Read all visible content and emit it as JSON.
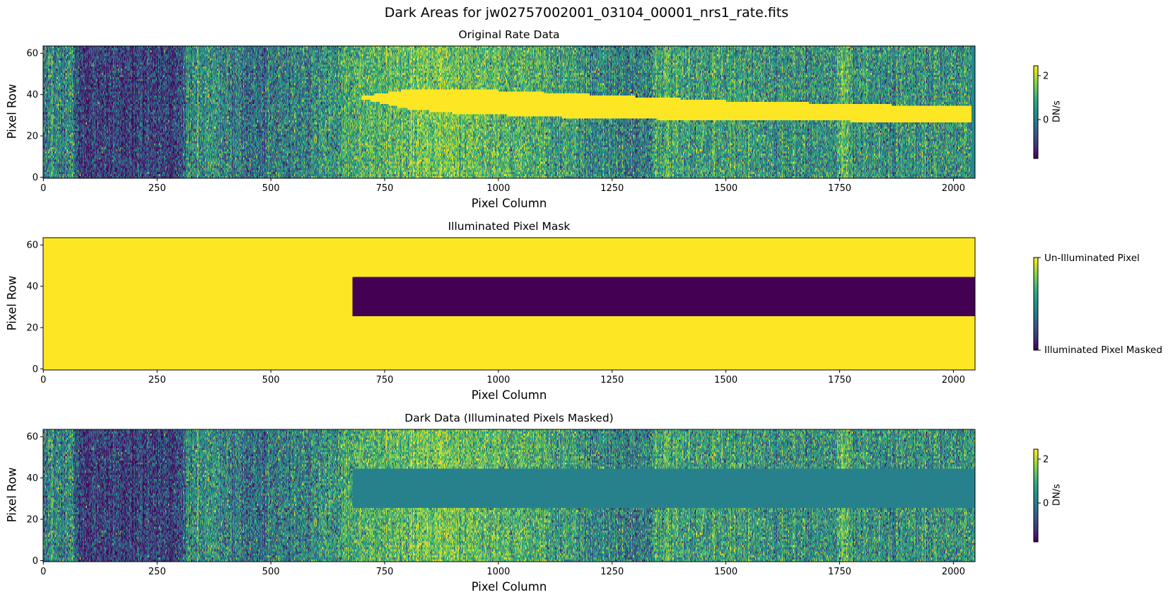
{
  "figure": {
    "suptitle": "Dark Areas for jw02757002001_03104_00001_nrs1_rate.fits"
  },
  "chart_data": [
    {
      "type": "heatmap",
      "title": "Original Rate Data",
      "xlabel": "Pixel Column",
      "ylabel": "Pixel Row",
      "xlim": [
        -0.5,
        2047.5
      ],
      "ylim": [
        -0.5,
        63.5
      ],
      "xticks": [
        0,
        250,
        500,
        750,
        1000,
        1250,
        1500,
        1750,
        2000
      ],
      "yticks": [
        0,
        20,
        40,
        60
      ],
      "colormap": "viridis",
      "colorbar": {
        "label": "DN/s",
        "range": [
          -1.77,
          2.45
        ],
        "ticks": [
          0,
          2
        ]
      },
      "features": {
        "dark_columns": [
          70,
          310
        ],
        "spectral_trace_start_column": 700,
        "trace_rows_at_end": [
          26,
          34
        ]
      }
    },
    {
      "type": "heatmap",
      "title": "Illuminated Pixel Mask",
      "xlabel": "Pixel Column",
      "ylabel": "Pixel Row",
      "xlim": [
        -0.5,
        2047.5
      ],
      "ylim": [
        -0.5,
        63.5
      ],
      "xticks": [
        0,
        250,
        500,
        750,
        1000,
        1250,
        1500,
        1750,
        2000
      ],
      "yticks": [
        0,
        20,
        40,
        60
      ],
      "colormap": "viridis",
      "colorbar": {
        "ticks": [
          "Illuminated Pixel Masked",
          "Un-Illuminated Pixel"
        ]
      },
      "masked_region": {
        "columns": [
          680,
          2047
        ],
        "rows": [
          26,
          44
        ]
      }
    },
    {
      "type": "heatmap",
      "title": "Dark Data (Illuminated Pixels Masked)",
      "xlabel": "Pixel Column",
      "ylabel": "Pixel Row",
      "xlim": [
        -0.5,
        2047.5
      ],
      "ylim": [
        -0.5,
        63.5
      ],
      "xticks": [
        0,
        250,
        500,
        750,
        1000,
        1250,
        1500,
        1750,
        2000
      ],
      "yticks": [
        0,
        20,
        40,
        60
      ],
      "colormap": "viridis",
      "colorbar": {
        "label": "DN/s",
        "range": [
          -1.77,
          2.45
        ],
        "ticks": [
          0,
          2
        ]
      },
      "masked_region": {
        "columns": [
          680,
          2047
        ],
        "rows": [
          26,
          44
        ],
        "fill_color": "#287d8e"
      }
    }
  ]
}
